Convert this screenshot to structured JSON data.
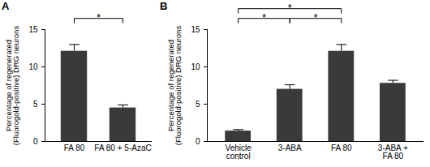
{
  "chart_data": [
    {
      "type": "bar",
      "title": "A",
      "y_label": "Percentage of regenerated\n(Fluorogold-positive) DRG neurons",
      "categories": [
        "FA 80",
        "FA 80 + 5-AzaC"
      ],
      "values": [
        12.1,
        4.5
      ],
      "errors": [
        0.9,
        0.4
      ],
      "color": "#3a3a3a",
      "ylim": [
        0,
        15
      ],
      "yticks": [
        0,
        5,
        10,
        15
      ],
      "grid": false,
      "annotations": [
        {
          "from": "FA 80",
          "to": "FA 80 + 5-AzaC",
          "label": "*"
        }
      ]
    },
    {
      "type": "bar",
      "title": "B",
      "y_label": "Percentage of regenerated\n(Fluorogold-positive) DRG neurons",
      "categories": [
        "Vehicle control",
        "3-ABA",
        "FA 80",
        "3-ABA + FA 80"
      ],
      "values": [
        1.4,
        7.0,
        12.1,
        7.8
      ],
      "errors": [
        0.2,
        0.6,
        0.9,
        0.4
      ],
      "color": "#3a3a3a",
      "ylim": [
        0,
        15
      ],
      "yticks": [
        0,
        5,
        10,
        15
      ],
      "grid": false,
      "annotations": [
        {
          "from": "Vehicle control",
          "to": "3-ABA",
          "label": "*"
        },
        {
          "from": "3-ABA",
          "to": "FA 80",
          "label": "*"
        },
        {
          "from": "Vehicle control",
          "to": "FA 80",
          "label": "*"
        }
      ]
    }
  ]
}
